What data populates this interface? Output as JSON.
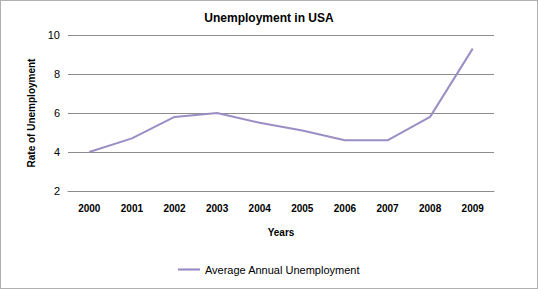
{
  "chart_data": {
    "type": "line",
    "title": "Unemployment in USA",
    "x_label": "Years",
    "y_label": "Rate of Unemployment",
    "categories": [
      "2000",
      "2001",
      "2002",
      "2003",
      "2004",
      "2005",
      "2006",
      "2007",
      "2008",
      "2009"
    ],
    "series": [
      {
        "name": "Average Annual Unemployment",
        "color": "#9b8ec4",
        "values": [
          4.0,
          4.7,
          5.8,
          6.0,
          5.5,
          5.1,
          4.6,
          4.6,
          5.8,
          9.3
        ]
      }
    ],
    "ylim": [
      2,
      10
    ],
    "yticks": [
      2,
      4,
      6,
      8,
      10
    ],
    "grid": true,
    "legend": "bottom",
    "marker": "none"
  }
}
